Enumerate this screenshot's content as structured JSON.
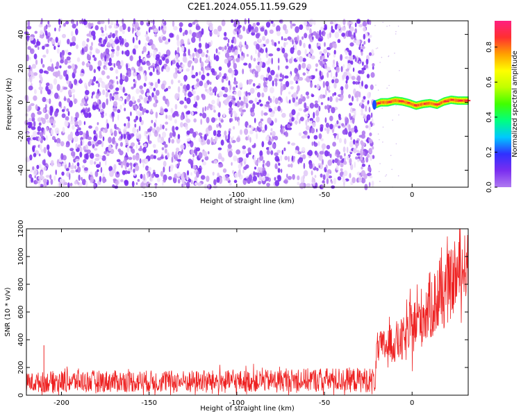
{
  "figure": {
    "title": "C2E1.2024.055.11.59.G29"
  },
  "chart_data": [
    {
      "type": "heatmap",
      "panel": "spectrogram",
      "xlabel": "Height of straight line (km)",
      "ylabel": "Frequency (Hz)",
      "xlim": [
        -220,
        32
      ],
      "ylim": [
        -50,
        48
      ],
      "xticks": [
        -200,
        -150,
        -100,
        -50,
        0
      ],
      "yticks": [
        -40,
        -20,
        0,
        20,
        40
      ],
      "colorbar": {
        "label": "Normalized spectral amplitude",
        "ticks": [
          0.0,
          0.2,
          0.4,
          0.6,
          0.8
        ],
        "range": [
          0,
          0.95
        ],
        "colormap": [
          "#b07af0",
          "#7a2ef0",
          "#3030ff",
          "#00c8ff",
          "#00ff80",
          "#40ff00",
          "#c0ff00",
          "#ffff00",
          "#ffa000",
          "#ff3030",
          "#ff2080"
        ]
      },
      "noise_region": {
        "x_start": -220,
        "x_end": -22,
        "f_range": [
          -50,
          48
        ],
        "amplitude_range": [
          0.0,
          0.12
        ]
      },
      "signal_track": {
        "x": [
          -22,
          -18,
          -14,
          -10,
          -6,
          -2,
          2,
          6,
          10,
          14,
          18,
          22,
          26,
          32
        ],
        "frequency": [
          -1.5,
          0.0,
          0.0,
          1.0,
          0.5,
          -0.5,
          -2.0,
          -1.0,
          -0.5,
          -1.5,
          0.5,
          1.5,
          1.0,
          1.0
        ],
        "peak_amplitude": 0.9
      }
    },
    {
      "type": "line",
      "panel": "snr",
      "xlabel": "Height of straight line (km)",
      "ylabel": "SNR (10 * v/v)",
      "xlim": [
        -220,
        32
      ],
      "ylim": [
        0,
        1200
      ],
      "xticks": [
        -200,
        -150,
        -100,
        -50,
        0
      ],
      "yticks": [
        0,
        200,
        400,
        600,
        800,
        1000,
        1200
      ],
      "series": [
        {
          "color": "#ee2222",
          "x": [
            -220,
            -200,
            -180,
            -160,
            -140,
            -120,
            -100,
            -80,
            -60,
            -40,
            -25,
            -21,
            -20,
            -15,
            -10,
            -5,
            0,
            5,
            10,
            15,
            20,
            25,
            30,
            32
          ],
          "mean": [
            90,
            100,
            100,
            100,
            100,
            100,
            100,
            105,
            110,
            110,
            110,
            110,
            330,
            360,
            380,
            390,
            480,
            560,
            640,
            680,
            760,
            850,
            930,
            950
          ],
          "spread": [
            70,
            80,
            80,
            80,
            80,
            80,
            80,
            80,
            85,
            90,
            90,
            90,
            120,
            130,
            150,
            170,
            200,
            220,
            250,
            260,
            260,
            240,
            240,
            220
          ]
        }
      ]
    }
  ]
}
